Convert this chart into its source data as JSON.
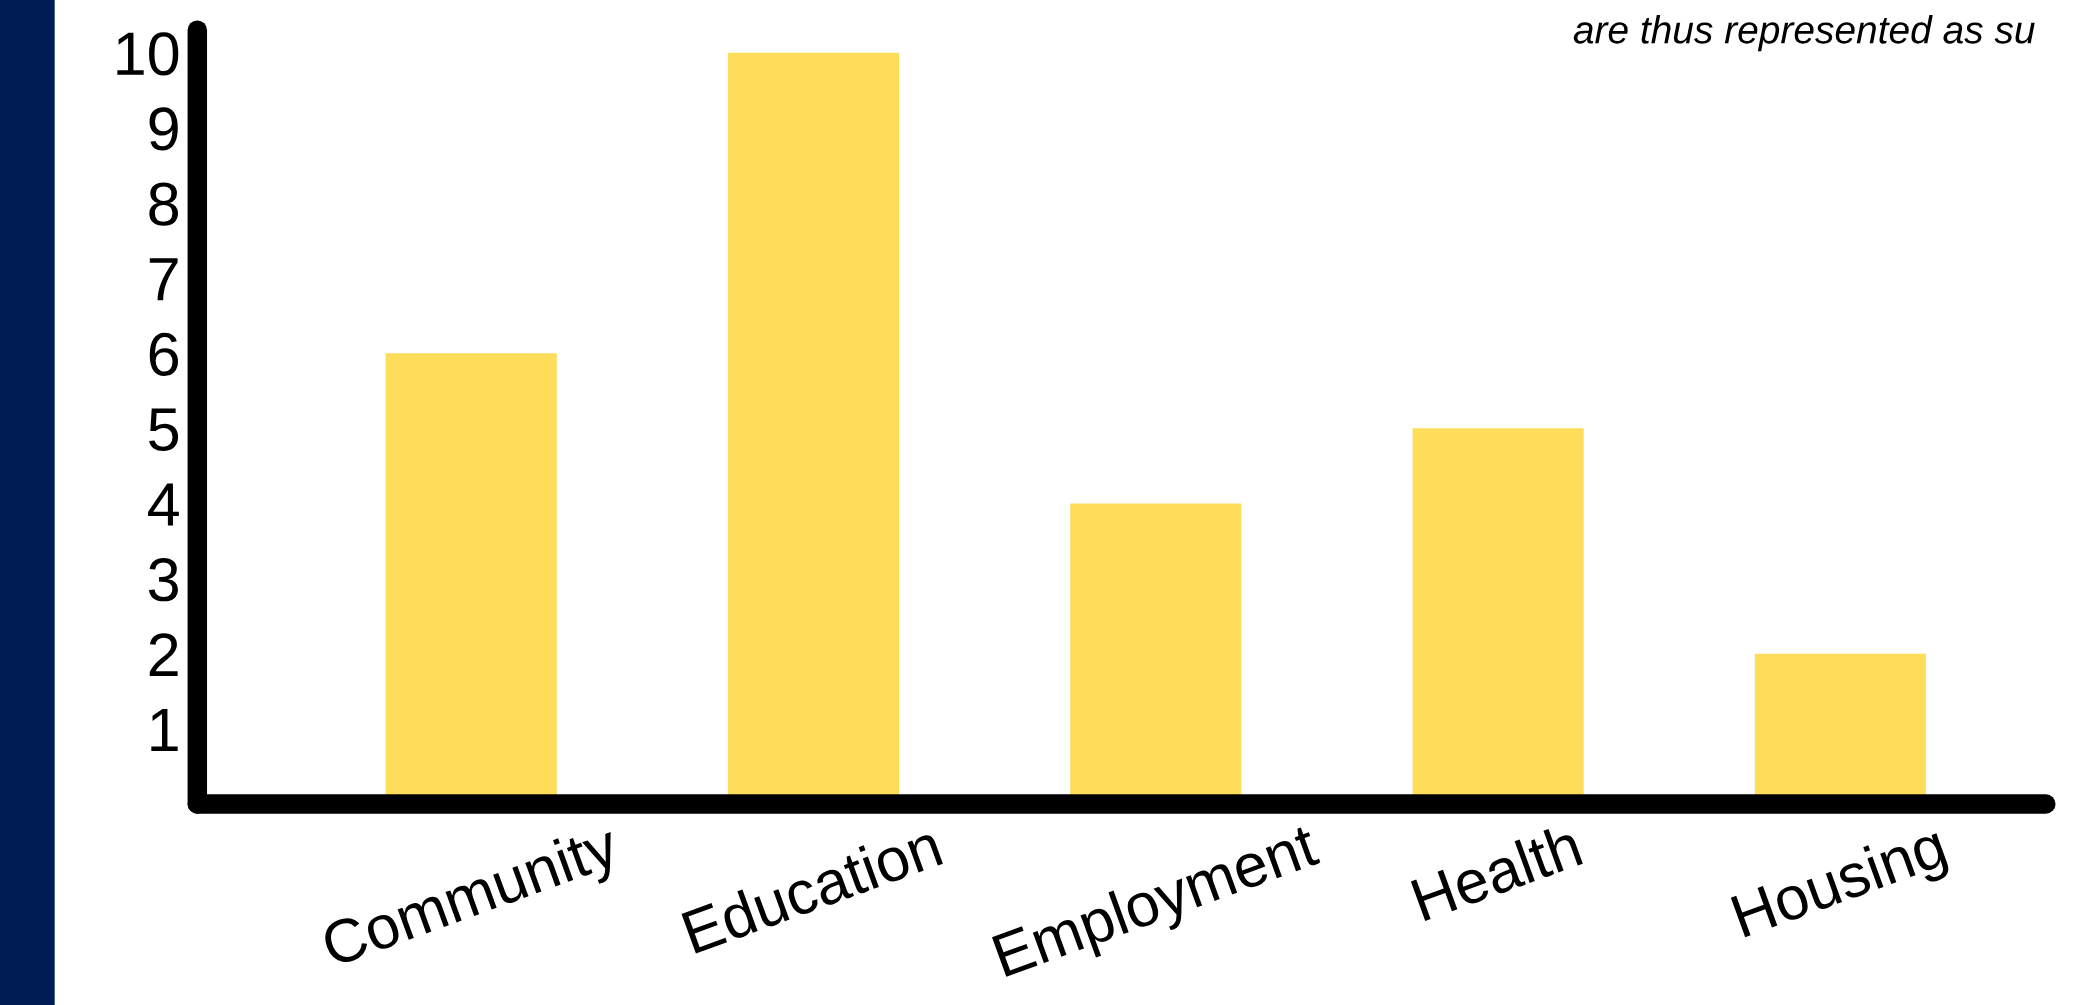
{
  "chart_data": {
    "type": "bar",
    "categories": [
      "Community",
      "Education",
      "Employment",
      "Health",
      "Housing"
    ],
    "values": [
      6,
      10,
      4,
      5,
      2
    ],
    "color": "#fedd5a",
    "ylim": [
      0,
      10.3
    ],
    "yticks": [
      1,
      2,
      3,
      4,
      5,
      6,
      7,
      8,
      9,
      10
    ],
    "grid": false,
    "annotations": [
      "are thus represented as su"
    ]
  }
}
